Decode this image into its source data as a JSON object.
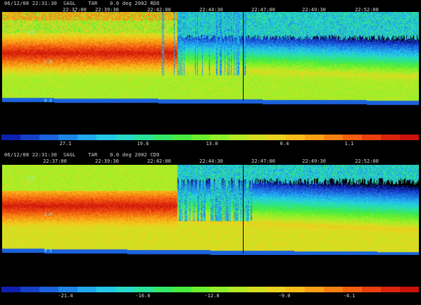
{
  "panels": [
    {
      "id": "top",
      "header": "06/12/08 22:31:30  SAGL    TAR    0.0 deg 2002 RDO",
      "time_ticks": [
        "22:37:00",
        "22:39:30",
        "22:42:00",
        "22:44:30",
        "22:47:00",
        "22:49:30",
        "22:52:00"
      ],
      "marker_labels": [
        "1.5",
        "1.0",
        "0.5"
      ],
      "colorbar_labels": [
        "27.1",
        "19.6",
        "13.0",
        "0.4",
        "1.1"
      ],
      "colorbar_colors": [
        "#0f1fb0",
        "#1540c8",
        "#1c62dc",
        "#1f86e8",
        "#22a9ee",
        "#25c8e6",
        "#27d9c8",
        "#2ce29a",
        "#36e868",
        "#48ec40",
        "#6cf02e",
        "#92f02a",
        "#b6ea26",
        "#d4e022",
        "#ead21e",
        "#f6bd1a",
        "#f9a016",
        "#f78013",
        "#f25f10",
        "#e8400e",
        "#da240c",
        "#c8120a"
      ],
      "scheme": "rdo"
    },
    {
      "id": "bottom",
      "header": "06/12/08 22:31:30  SAGL    TAR    0.0 deg 2002 CDO",
      "time_ticks": [
        "22:37:00",
        "22:39:30",
        "22:42:00",
        "22:44:30",
        "22:47:00",
        "22:49:30",
        "22:52:00"
      ],
      "marker_labels": [
        "1.5",
        "1.0",
        "0.5"
      ],
      "colorbar_labels": [
        "-21.4",
        "-16.6",
        "-12.8",
        "-9.0",
        "-4.1"
      ],
      "colorbar_colors": [
        "#0f1fb0",
        "#1540c8",
        "#1c62dc",
        "#1f86e8",
        "#22a9ee",
        "#25c8e6",
        "#27d9c8",
        "#2ce29a",
        "#36e868",
        "#48ec40",
        "#6cf02e",
        "#92f02a",
        "#b6ea26",
        "#d4e022",
        "#ead21e",
        "#f6bd1a",
        "#f9a016",
        "#f78013",
        "#f25f10",
        "#e8400e",
        "#da240c",
        "#c8120a"
      ],
      "scheme": "cdo"
    }
  ]
}
